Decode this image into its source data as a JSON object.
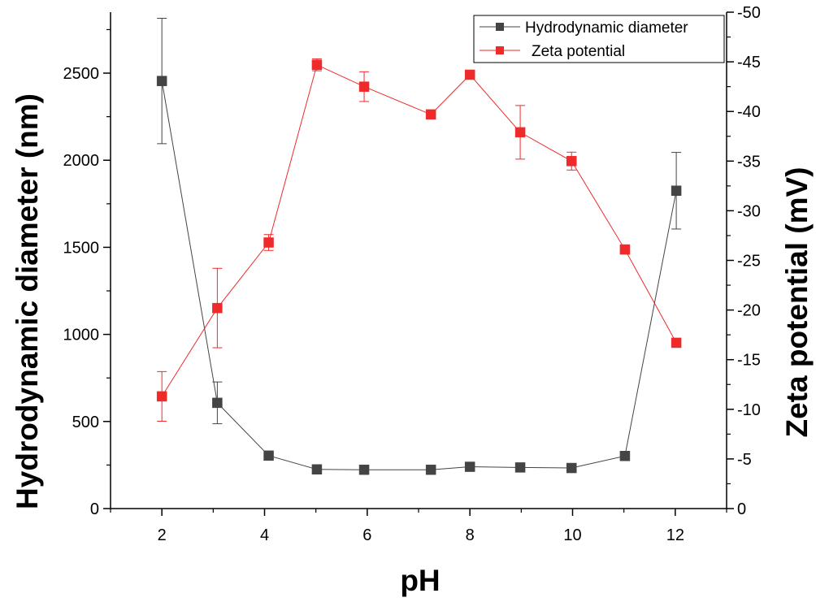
{
  "chart_data": {
    "type": "line",
    "title": "",
    "xlabel": "pH",
    "ylabel": "Hydrodynamic diameter (nm)",
    "y2label": "Zeta potential (mV)",
    "xlim": [
      1,
      13
    ],
    "ylim": [
      0,
      2850
    ],
    "y2lim": [
      0,
      -50
    ],
    "xticks": [
      2,
      4,
      6,
      8,
      10,
      12
    ],
    "yticks": [
      0,
      500,
      1000,
      1500,
      2000,
      2500
    ],
    "y2ticks": [
      0,
      -5,
      -10,
      -15,
      -20,
      -25,
      -30,
      -35,
      -40,
      -45,
      -50
    ],
    "grid": false,
    "legend_position": "top-right",
    "series": [
      {
        "name": "Hydrodynamic diameter",
        "axis": "left",
        "color": "#444444",
        "x": [
          2,
          3.08,
          4.08,
          5.02,
          5.94,
          7.24,
          8.0,
          8.98,
          9.98,
          11.02,
          12.02
        ],
        "y": [
          2455,
          607,
          304,
          225,
          223,
          223,
          240,
          236,
          233,
          302,
          1825
        ],
        "err": [
          360,
          120,
          0,
          0,
          0,
          0,
          0,
          0,
          0,
          0,
          220
        ]
      },
      {
        "name": "Zeta potential",
        "axis": "right",
        "color": "#ee2a2a",
        "x": [
          2,
          3.08,
          4.08,
          5.02,
          5.94,
          7.24,
          8.0,
          8.98,
          9.98,
          11.02,
          12.02
        ],
        "y": [
          -11.3,
          -20.2,
          -26.8,
          -44.7,
          -42.5,
          -39.7,
          -43.7,
          -37.9,
          -35.0,
          -26.1,
          -16.7
        ],
        "err": [
          2.5,
          4.0,
          0.8,
          0.6,
          1.5,
          0,
          0,
          2.7,
          0.9,
          0.4,
          0
        ]
      }
    ]
  }
}
